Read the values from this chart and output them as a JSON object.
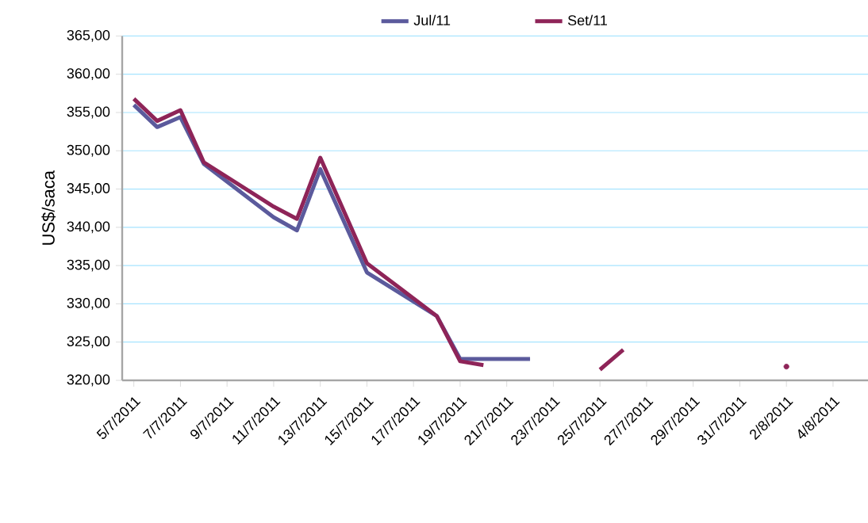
{
  "chart_data": {
    "type": "line",
    "ylabel": "US$/saca",
    "x": [
      "2011-07-05",
      "2011-07-06",
      "2011-07-07",
      "2011-07-08",
      "2011-07-11",
      "2011-07-12",
      "2011-07-13",
      "2011-07-15",
      "2011-07-18",
      "2011-07-19",
      "2011-07-20",
      "2011-07-21",
      "2011-07-22",
      "2011-07-25",
      "2011-07-26",
      "2011-07-27",
      "2011-08-02"
    ],
    "series": [
      {
        "name": "Jul/11",
        "color": "#5b5a9c",
        "values": [
          356.0,
          353.1,
          354.4,
          348.3,
          341.3,
          339.6,
          347.6,
          334.1,
          328.4,
          322.8,
          322.8,
          322.8,
          322.8,
          null,
          null,
          null,
          null
        ]
      },
      {
        "name": "Set/11",
        "color": "#8e2458",
        "values": [
          356.8,
          353.9,
          355.3,
          348.5,
          342.7,
          341.1,
          349.1,
          335.3,
          328.4,
          322.5,
          322.0,
          null,
          null,
          321.4,
          324.0,
          null,
          321.8
        ]
      }
    ],
    "xlim": [
      "2011-07-04T12:00",
      "2011-08-05T12:00"
    ],
    "xticks": [
      {
        "value": "2011-07-05",
        "label": "5/7/2011"
      },
      {
        "value": "2011-07-07",
        "label": "7/7/2011"
      },
      {
        "value": "2011-07-09",
        "label": "9/7/2011"
      },
      {
        "value": "2011-07-11",
        "label": "11/7/2011"
      },
      {
        "value": "2011-07-13",
        "label": "13/7/2011"
      },
      {
        "value": "2011-07-15",
        "label": "15/7/2011"
      },
      {
        "value": "2011-07-17",
        "label": "17/7/2011"
      },
      {
        "value": "2011-07-19",
        "label": "19/7/2011"
      },
      {
        "value": "2011-07-21",
        "label": "21/7/2011"
      },
      {
        "value": "2011-07-23",
        "label": "23/7/2011"
      },
      {
        "value": "2011-07-25",
        "label": "25/7/2011"
      },
      {
        "value": "2011-07-27",
        "label": "27/7/2011"
      },
      {
        "value": "2011-07-29",
        "label": "29/7/2011"
      },
      {
        "value": "2011-07-31",
        "label": "31/7/2011"
      },
      {
        "value": "2011-08-02",
        "label": "2/8/2011"
      },
      {
        "value": "2011-08-04",
        "label": "4/8/2011"
      }
    ],
    "ylim": [
      320,
      365
    ],
    "yticks": [
      {
        "value": 320,
        "label": "320,00"
      },
      {
        "value": 325,
        "label": "325,00"
      },
      {
        "value": 330,
        "label": "330,00"
      },
      {
        "value": 335,
        "label": "335,00"
      },
      {
        "value": 340,
        "label": "340,00"
      },
      {
        "value": 345,
        "label": "345,00"
      },
      {
        "value": 350,
        "label": "350,00"
      },
      {
        "value": 355,
        "label": "355,00"
      },
      {
        "value": 360,
        "label": "360,00"
      },
      {
        "value": 365,
        "label": "365,00"
      }
    ],
    "grid": "y",
    "legend": "top",
    "marker": "none",
    "line_style": "solid"
  }
}
